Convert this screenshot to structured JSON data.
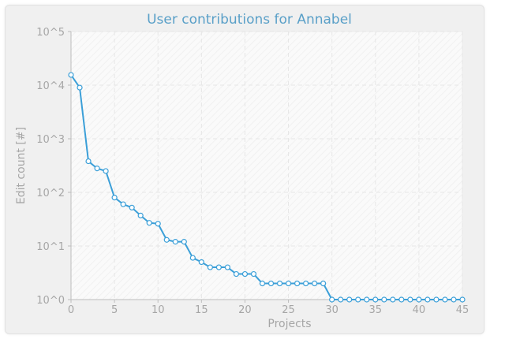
{
  "chart_data": {
    "type": "line",
    "title": "User contributions for Annabel",
    "xlabel": "Projects",
    "ylabel": "Edit count [#]",
    "x_scale": "linear",
    "y_scale": "log",
    "xlim": [
      0,
      45
    ],
    "ylim": [
      1,
      100000
    ],
    "x_ticks": [
      0,
      5,
      10,
      15,
      20,
      25,
      30,
      35,
      40,
      45
    ],
    "y_ticks": [
      {
        "value": 1,
        "label": "10^0"
      },
      {
        "value": 10,
        "label": "10^1"
      },
      {
        "value": 100,
        "label": "10^2"
      },
      {
        "value": 1000,
        "label": "10^3"
      },
      {
        "value": 10000,
        "label": "10^4"
      },
      {
        "value": 100000,
        "label": "10^5"
      }
    ],
    "grid": true,
    "legend": "none",
    "series": [
      {
        "color": "#3b9fd8",
        "x": [
          0,
          1,
          2,
          3,
          4,
          5,
          6,
          7,
          8,
          9,
          10,
          11,
          12,
          13,
          14,
          15,
          16,
          17,
          18,
          19,
          20,
          21,
          22,
          23,
          24,
          25,
          26,
          27,
          28,
          29,
          30,
          31,
          32,
          33,
          34,
          35,
          36,
          37,
          38,
          39,
          40,
          41,
          42,
          43,
          44,
          45
        ],
        "y": [
          15500,
          9000,
          380,
          280,
          250,
          80,
          60,
          52,
          37,
          27,
          26,
          13,
          12,
          12,
          6,
          5,
          4,
          4,
          4,
          3,
          3,
          3,
          2,
          2,
          2,
          2,
          2,
          2,
          2,
          2,
          1,
          1,
          1,
          1,
          1,
          1,
          1,
          1,
          1,
          1,
          1,
          1,
          1,
          1,
          1,
          1
        ]
      }
    ]
  },
  "colors": {
    "frame_bg": "#f0f0f0",
    "plot_bg": "#fafafa",
    "grid": "#e6e6e6",
    "axis": "#bdbdbd",
    "line": "#3b9fd8",
    "title": "#5aa0c8",
    "text": "#a6a6a6"
  }
}
